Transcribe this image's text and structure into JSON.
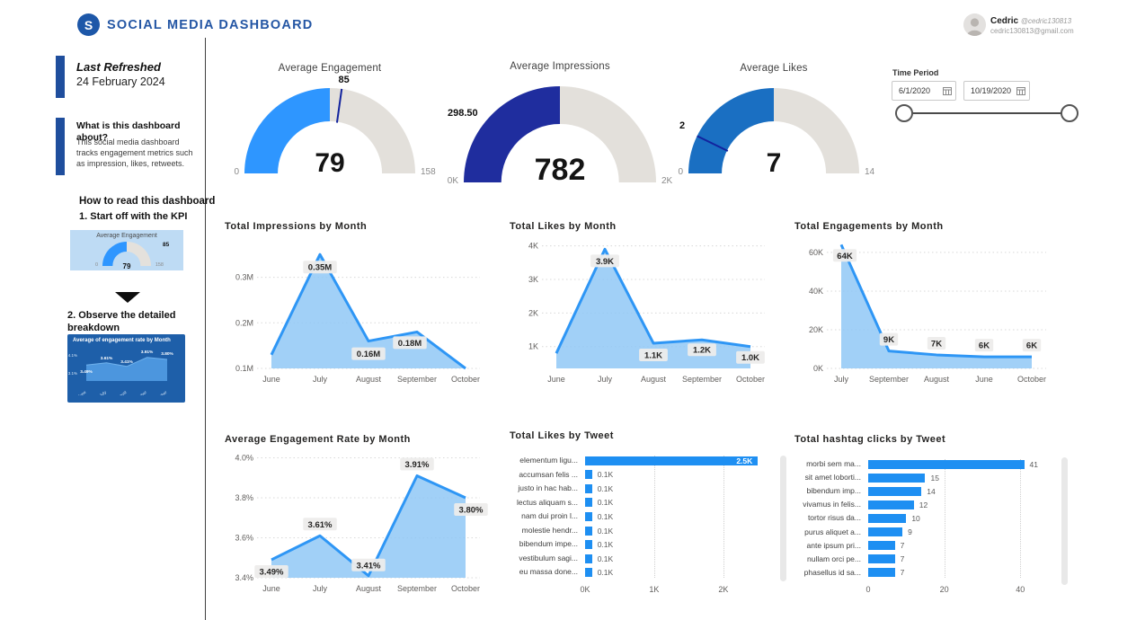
{
  "header": {
    "logo_letter": "S",
    "title": "SOCIAL MEDIA DASHBOARD",
    "user": {
      "name": "Cedric",
      "handle": "@cedric130813",
      "email": "cedric130813@gmail.com"
    }
  },
  "sidebar": {
    "last_refreshed_label": "Last Refreshed",
    "last_refreshed_date": "24 February 2024",
    "about_title": "What is this dashboard about?",
    "about_body": "This social media dashboard tracks engagement metrics such as impression, likes, retweets.",
    "howto_title": "How to read this dashboard",
    "step1": "1. Start off with the KPI",
    "step2": "2. Observe the detailed breakdown",
    "mini_gauge": {
      "title": "Average Engagement",
      "target": "85",
      "value": "79",
      "min": "0",
      "max": "158"
    }
  },
  "time_period": {
    "label": "Time Period",
    "start": "6/1/2020",
    "end": "10/19/2020"
  },
  "gauges": [
    {
      "title": "Average Engagement",
      "value": "79",
      "min": "0",
      "max": "158",
      "target": "85",
      "color": "#2e96ff",
      "pct": 50
    },
    {
      "title": "Average Impressions",
      "value": "782",
      "min": "0K",
      "max": "2K",
      "callout": "298.50",
      "color": "#1f2d9e",
      "pct": 50
    },
    {
      "title": "Average Likes",
      "value": "7",
      "min": "0",
      "max": "14",
      "target": "2",
      "color": "#1a6fc2",
      "pct": 50
    }
  ],
  "chart_data": [
    {
      "id": "impressions",
      "type": "area",
      "title": "Total Impressions by Month",
      "categories": [
        "June",
        "July",
        "August",
        "September",
        "October"
      ],
      "values": [
        0.13,
        0.35,
        0.16,
        0.18,
        0.1
      ],
      "labels": [
        "",
        "0.35M",
        "0.16M",
        "0.18M",
        ""
      ],
      "label_dy": [
        0,
        14,
        14,
        12,
        0
      ],
      "label_dx": [
        0,
        0,
        0,
        -8,
        0
      ],
      "ylim": [
        0.1,
        0.38
      ],
      "grid": true,
      "legend": "none",
      "y_ticks": [
        {
          "v": 0.1,
          "t": "0.1M"
        },
        {
          "v": 0.2,
          "t": "0.2M"
        },
        {
          "v": 0.3,
          "t": "0.3M"
        }
      ]
    },
    {
      "id": "likes_month",
      "type": "area",
      "title": "Total Likes by Month",
      "categories": [
        "June",
        "July",
        "August",
        "September",
        "October"
      ],
      "values": [
        0.8,
        3.9,
        1.1,
        1.2,
        1.0
      ],
      "labels": [
        "",
        "3.9K",
        "1.1K",
        "1.2K",
        "1.0K"
      ],
      "label_dy": [
        0,
        13,
        13,
        11,
        12
      ],
      "label_dx": [
        0,
        0,
        0,
        0,
        0
      ],
      "ylim": [
        0.35,
        4.15
      ],
      "grid": true,
      "legend": "none",
      "y_ticks": [
        {
          "v": 1,
          "t": "1K"
        },
        {
          "v": 2,
          "t": "2K"
        },
        {
          "v": 3,
          "t": "3K"
        },
        {
          "v": 4,
          "t": "4K"
        }
      ]
    },
    {
      "id": "engagements",
      "type": "area",
      "title": "Total Engagements by Month",
      "categories": [
        "July",
        "September",
        "August",
        "June",
        "October"
      ],
      "values": [
        64,
        9,
        7,
        6,
        6
      ],
      "labels": [
        "64K",
        "9K",
        "7K",
        "6K",
        "6K"
      ],
      "label_dy": [
        12,
        -13,
        -13,
        -13,
        -13
      ],
      "label_dx": [
        4,
        0,
        0,
        0,
        0
      ],
      "ylim": [
        0,
        66
      ],
      "grid": true,
      "legend": "none",
      "y_ticks": [
        {
          "v": 0,
          "t": "0K"
        },
        {
          "v": 20,
          "t": "20K"
        },
        {
          "v": 40,
          "t": "40K"
        },
        {
          "v": 60,
          "t": "60K"
        }
      ]
    },
    {
      "id": "rate",
      "type": "area",
      "title": "Average Engagement Rate by Month",
      "categories": [
        "June",
        "July",
        "August",
        "September",
        "October"
      ],
      "values": [
        3.49,
        3.61,
        3.41,
        3.91,
        3.8
      ],
      "labels": [
        "3.49%",
        "3.61%",
        "3.41%",
        "3.91%",
        "3.80%"
      ],
      "label_dy": [
        13,
        -13,
        -12,
        -13,
        13
      ],
      "label_dx": [
        0,
        0,
        0,
        0,
        6
      ],
      "ylim": [
        3.4,
        4.02
      ],
      "grid": true,
      "legend": "none",
      "y_ticks": [
        {
          "v": 3.4,
          "t": "3.4%"
        },
        {
          "v": 3.6,
          "t": "3.6%"
        },
        {
          "v": 3.8,
          "t": "3.8%"
        },
        {
          "v": 4.0,
          "t": "4.0%"
        }
      ]
    },
    {
      "id": "likes_tweet",
      "type": "hbar",
      "title": "Total Likes by Tweet",
      "items": [
        {
          "label": "elementum ligu...",
          "value": 2500,
          "display": "2.5K",
          "inside": true
        },
        {
          "label": "accumsan felis ...",
          "value": 100,
          "display": "0.1K"
        },
        {
          "label": "justo in hac hab...",
          "value": 100,
          "display": "0.1K"
        },
        {
          "label": "lectus aliquam s...",
          "value": 100,
          "display": "0.1K"
        },
        {
          "label": "nam dui proin l...",
          "value": 100,
          "display": "0.1K"
        },
        {
          "label": "molestie hendr...",
          "value": 100,
          "display": "0.1K"
        },
        {
          "label": "bibendum impe...",
          "value": 100,
          "display": "0.1K"
        },
        {
          "label": "vestibulum sagi...",
          "value": 100,
          "display": "0.1K"
        },
        {
          "label": "eu massa done...",
          "value": 100,
          "display": "0.1K"
        }
      ],
      "xlim": [
        0,
        2600
      ],
      "label_w": 84,
      "right_pad": 28,
      "x_ticks": [
        {
          "v": 0,
          "t": "0K"
        },
        {
          "v": 1000,
          "t": "1K"
        },
        {
          "v": 2000,
          "t": "2K"
        }
      ]
    },
    {
      "id": "hashtag",
      "type": "hbar",
      "title": "Total hashtag clicks by Tweet",
      "items": [
        {
          "label": "morbi sem ma...",
          "value": 41,
          "display": "41"
        },
        {
          "label": "sit amet loborti...",
          "value": 15,
          "display": "15"
        },
        {
          "label": "bibendum imp...",
          "value": 14,
          "display": "14"
        },
        {
          "label": "vivamus in felis...",
          "value": 12,
          "display": "12"
        },
        {
          "label": "tortor risus da...",
          "value": 10,
          "display": "10"
        },
        {
          "label": "purus aliquet a...",
          "value": 9,
          "display": "9"
        },
        {
          "label": "ante ipsum pri...",
          "value": 7,
          "display": "7"
        },
        {
          "label": "nullam orci pe...",
          "value": 7,
          "display": "7"
        },
        {
          "label": "phasellus id sa...",
          "value": 7,
          "display": "7"
        }
      ],
      "xlim": [
        0,
        43
      ],
      "label_w": 82,
      "right_pad": 42,
      "x_ticks": [
        {
          "v": 0,
          "t": "0"
        },
        {
          "v": 20,
          "t": "20"
        },
        {
          "v": 40,
          "t": "40"
        }
      ]
    },
    {
      "id": "mini_rate",
      "type": "area",
      "mini": true,
      "title": "Average of engagement rate by Month",
      "categories": [
        "June",
        "July",
        "August",
        "September",
        "October"
      ],
      "values": [
        3.49,
        3.61,
        3.41,
        3.91,
        3.8
      ],
      "labels": [
        "3.49%",
        "3.61%",
        "3.41%",
        "3.91%",
        "3.80%"
      ],
      "label_dy": [
        7,
        -6,
        -6,
        -7,
        -7
      ],
      "label_dx": [
        0,
        0,
        0,
        0,
        0
      ],
      "ylim": [
        2.6,
        4.3
      ],
      "grid": false,
      "legend": "none",
      "y_ticks": [
        {
          "v": 4.1,
          "t": "4.1%"
        },
        {
          "v": 3.1,
          "t": "3.1%"
        }
      ]
    }
  ],
  "colors": {
    "bar_blue": "#1e8ff2",
    "area_stroke": "#2e96f5",
    "area_fill": "#90c8f6",
    "accent_navy": "#1f4e9d",
    "gauge_gray": "#e3e0db"
  }
}
